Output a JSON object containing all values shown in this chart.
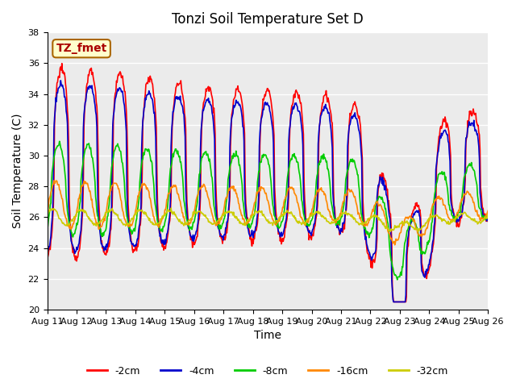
{
  "title": "Tonzi Soil Temperature Set D",
  "xlabel": "Time",
  "ylabel": "Soil Temperature (C)",
  "ylim": [
    20,
    38
  ],
  "yticks": [
    20,
    22,
    24,
    26,
    28,
    30,
    32,
    34,
    36,
    38
  ],
  "annotation_text": "TZ_fmet",
  "annotation_color": "#aa0000",
  "annotation_bg": "#ffffcc",
  "annotation_border": "#aa6600",
  "series_colors": [
    "#ff0000",
    "#0000cc",
    "#00cc00",
    "#ff8800",
    "#cccc00"
  ],
  "series_labels": [
    "-2cm",
    "-4cm",
    "-8cm",
    "-16cm",
    "-32cm"
  ],
  "bg_color": "#ebebeb",
  "n_days": 15,
  "samples_per_day": 48,
  "tick_labels": [
    "Aug 11",
    "Aug 12",
    "Aug 13",
    "Aug 14",
    "Aug 15",
    "Aug 16",
    "Aug 17",
    "Aug 18",
    "Aug 19",
    "Aug 20",
    "Aug 21",
    "Aug 22",
    "Aug 23",
    "Aug 24",
    "Aug 25",
    "Aug 26"
  ],
  "line_width": 1.2
}
